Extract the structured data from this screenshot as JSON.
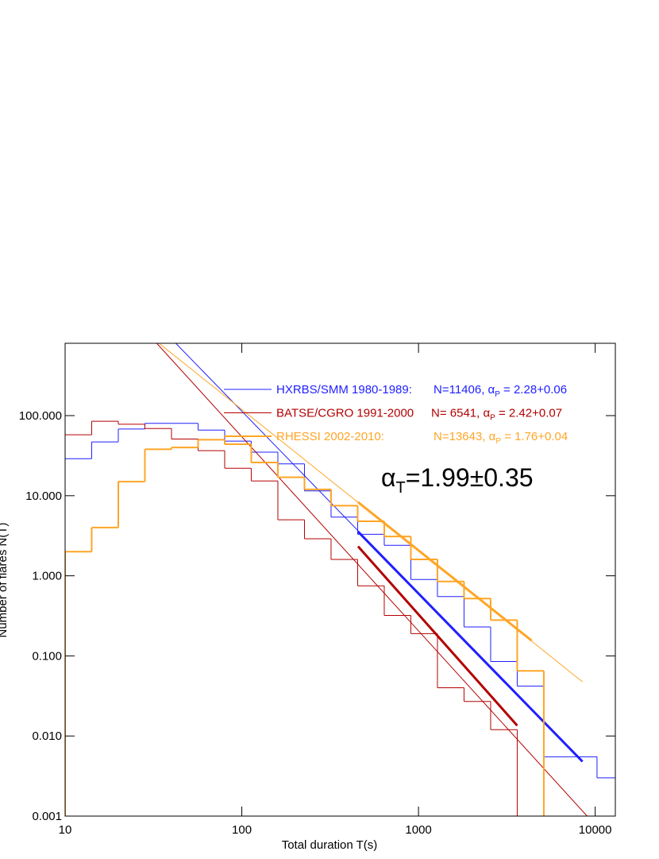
{
  "chart_data": {
    "type": "histogram",
    "x_label": "Total duration  T(s)",
    "y_label": "Number of flares N(T)",
    "xlog": true,
    "ylog": true,
    "xlim": [
      10,
      13000
    ],
    "ylim": [
      0.001,
      800
    ],
    "xticks": [
      10,
      100,
      1000,
      10000
    ],
    "yticks": [
      {
        "value": 100,
        "label": "100.000"
      },
      {
        "value": 10,
        "label": "10.000"
      },
      {
        "value": 1,
        "label": "1.000"
      },
      {
        "value": 0.1,
        "label": "0.100"
      },
      {
        "value": 0.01,
        "label": "0.010"
      },
      {
        "value": 0.001,
        "label": "0.001"
      }
    ],
    "bins": [
      10,
      14.14,
      20,
      28.28,
      40,
      56.57,
      80,
      113.1,
      160,
      226.3,
      320,
      452.5,
      640,
      905.1,
      1280,
      1810,
      2560,
      3620,
      5120,
      7241,
      10240,
      14482
    ],
    "series": [
      {
        "name": "HXRBS/SMM 1980-1989:",
        "color": "#1f1fff",
        "stat_prefix": "N=11406, α",
        "stat_sub": "P",
        "stat_suffix": " = 2.28+0.06",
        "values": [
          29,
          47,
          68,
          80,
          80,
          66,
          48,
          35,
          25,
          11.5,
          5.4,
          3.3,
          2.4,
          0.9,
          0.55,
          0.23,
          0.085,
          0.042,
          0.0055,
          0.0055,
          0.003
        ],
        "fit_line": {
          "x": [
            42.3,
            8470
          ],
          "values": [
            800,
            0.0048
          ]
        },
        "fit_segment": {
          "x": [
            455,
            8470
          ],
          "values": [
            3.56,
            0.0048
          ]
        }
      },
      {
        "name": "BATSE/CGRO 1991-2000",
        "color": "#b30000",
        "stat_prefix": "N= 6541, α",
        "stat_sub": "P",
        "stat_suffix": " = 2.42+0.07",
        "values": [
          57.7,
          85,
          78,
          69,
          51,
          36.5,
          22,
          15.3,
          5.0,
          2.9,
          1.6,
          0.75,
          0.32,
          0.19,
          0.04,
          0.027,
          0.012,
          null,
          null,
          null,
          null
        ],
        "fit_line": {
          "x": [
            33,
            9000
          ],
          "values": [
            800,
            0.001
          ]
        },
        "fit_segment": {
          "x": [
            455,
            3620
          ],
          "values": [
            2.33,
            0.0135
          ]
        }
      },
      {
        "name": "RHESSI 2002-2010:",
        "color": "#ffa526",
        "stat_prefix": "N=13643, α",
        "stat_sub": "P",
        "stat_suffix": " = 1.76+0.04",
        "values": [
          2,
          4,
          15,
          38,
          40,
          50,
          44,
          26,
          17,
          12,
          7.5,
          4.8,
          3.1,
          1.6,
          0.85,
          0.52,
          0.28,
          0.065,
          null,
          null,
          null
        ],
        "fit_line": {
          "x": [
            34,
            8470
          ],
          "values": [
            800,
            0.0475
          ]
        },
        "fit_segment": {
          "x": [
            455,
            4370
          ],
          "values": [
            8.3,
            0.155
          ]
        }
      }
    ],
    "annotation": {
      "base": "α",
      "sub": "T",
      "rest": "=1.99±0.35"
    }
  }
}
